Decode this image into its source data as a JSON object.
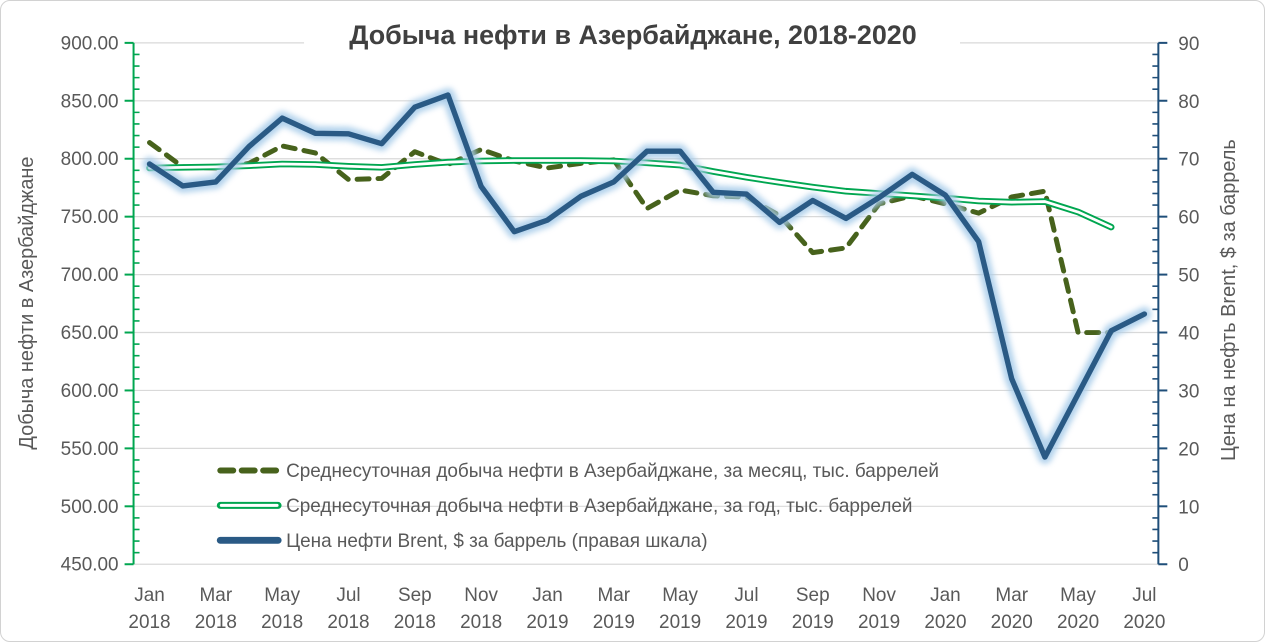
{
  "chart_data": {
    "type": "line",
    "title": "Добыча нефти в Азербайджане, 2018-2020",
    "title_color": "#404040",
    "background": "#ffffff",
    "grid": true,
    "grid_color": "#d9d9d9",
    "text_color": "#595959",
    "legend_position": "bottom-left-inside",
    "categories": [
      "Jan 2018",
      "Feb 2018",
      "Mar 2018",
      "Apr 2018",
      "May 2018",
      "Jun 2018",
      "Jul 2018",
      "Aug 2018",
      "Sep 2018",
      "Oct 2018",
      "Nov 2018",
      "Dec 2018",
      "Jan 2019",
      "Feb 2019",
      "Mar 2019",
      "Apr 2019",
      "May 2019",
      "Jun 2019",
      "Jul 2019",
      "Aug 2019",
      "Sep 2019",
      "Oct 2019",
      "Nov 2019",
      "Dec 2019",
      "Jan 2020",
      "Feb 2020",
      "Mar 2020",
      "Apr 2020",
      "May 2020",
      "Jun 2020",
      "Jul 2020"
    ],
    "x_tick_every": 2,
    "left_axis": {
      "label": "Добыча нефти в Азербайджане",
      "min": 450,
      "max": 900,
      "step": 50,
      "minor_step": 10,
      "color": "#00a650",
      "tick_labels": [
        "900.00",
        "850.00",
        "800.00",
        "750.00",
        "700.00",
        "650.00",
        "600.00",
        "550.00",
        "500.00",
        "450.00"
      ]
    },
    "right_axis": {
      "label": "Цена на нефть Brent, $ за баррель",
      "min": 0,
      "max": 90,
      "step": 10,
      "minor_step": 2,
      "color": "#1f4e79",
      "tick_labels": [
        "90",
        "80",
        "70",
        "60",
        "50",
        "40",
        "30",
        "20",
        "10",
        "0"
      ]
    },
    "series": [
      {
        "key": "monthly-production",
        "name": "Среднесуточная добыча нефти в Азербайджане, за месяц, тыс. баррелей",
        "axis": "left",
        "line_style": "dashed",
        "color": "#47621c",
        "values": [
          814,
          793,
          792,
          796,
          811,
          805,
          782,
          783,
          806,
          795,
          808,
          798,
          792,
          796,
          799,
          757,
          773,
          768,
          767,
          751,
          719,
          723,
          761,
          768,
          761,
          753,
          767,
          772,
          650,
          650,
          null
        ]
      },
      {
        "key": "annual-production",
        "name": "Среднесуточная добыча нефти в Азербайджане, за год, тыс. баррелей",
        "axis": "left",
        "line_style": "outline",
        "color": "#00a650",
        "core_color": "#ffffff",
        "values": [
          792,
          792.5,
          793,
          794,
          795.5,
          795,
          793.5,
          792.5,
          795,
          797,
          798,
          798.5,
          798.5,
          798.5,
          798,
          796.5,
          794.5,
          789,
          784,
          779.5,
          775.5,
          772,
          770,
          768,
          766,
          763.5,
          762.5,
          763,
          754,
          741,
          null
        ]
      },
      {
        "key": "brent-price",
        "name": "Цена нефти Brent, $ за баррель (правая шкала)",
        "axis": "right",
        "line_style": "glow-solid",
        "color": "#2a5a85",
        "glow_color": "#a6cbe9",
        "values": [
          69.1,
          65.3,
          66,
          72.1,
          77,
          74.4,
          74.3,
          72.6,
          78.9,
          81,
          65.2,
          57.4,
          59.4,
          63.5,
          66,
          71.3,
          71.3,
          64.2,
          63.9,
          59,
          62.8,
          59.7,
          63.3,
          67.3,
          63.7,
          55.7,
          32,
          18.5,
          29.4,
          40.3,
          43.2
        ]
      }
    ]
  }
}
